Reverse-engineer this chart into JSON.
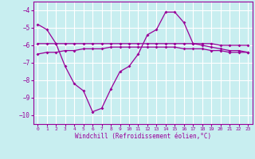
{
  "xlabel": "Windchill (Refroidissement éolien,°C)",
  "background_color": "#c8eef0",
  "line_color": "#990099",
  "grid_color": "#ffffff",
  "hours": [
    0,
    1,
    2,
    3,
    4,
    5,
    6,
    7,
    8,
    9,
    10,
    11,
    12,
    13,
    14,
    15,
    16,
    17,
    18,
    19,
    20,
    21,
    22,
    23
  ],
  "windchill": [
    -4.8,
    -5.1,
    -5.9,
    -7.2,
    -8.2,
    -8.6,
    -9.8,
    -9.6,
    -8.5,
    -7.5,
    -7.2,
    -6.5,
    -5.4,
    -5.1,
    -4.1,
    -4.1,
    -4.7,
    -5.9,
    -6.0,
    -6.1,
    -6.2,
    -6.3,
    -6.3,
    -6.4
  ],
  "temp_line": [
    -5.9,
    -5.9,
    -5.9,
    -5.9,
    -5.9,
    -5.9,
    -5.9,
    -5.9,
    -5.9,
    -5.9,
    -5.9,
    -5.9,
    -5.9,
    -5.9,
    -5.9,
    -5.9,
    -5.9,
    -5.9,
    -5.9,
    -5.9,
    -6.0,
    -6.0,
    -6.0,
    -6.0
  ],
  "avg_line": [
    -6.5,
    -6.4,
    -6.4,
    -6.3,
    -6.3,
    -6.2,
    -6.2,
    -6.2,
    -6.1,
    -6.1,
    -6.1,
    -6.1,
    -6.1,
    -6.1,
    -6.1,
    -6.1,
    -6.2,
    -6.2,
    -6.2,
    -6.3,
    -6.3,
    -6.4,
    -6.4,
    -6.4
  ],
  "ylim": [
    -10.5,
    -3.5
  ],
  "yticks": [
    -10,
    -9,
    -8,
    -7,
    -6,
    -5,
    -4
  ],
  "xlim": [
    -0.5,
    23.5
  ],
  "xticks": [
    0,
    1,
    2,
    3,
    4,
    5,
    6,
    7,
    8,
    9,
    10,
    11,
    12,
    13,
    14,
    15,
    16,
    17,
    18,
    19,
    20,
    21,
    22,
    23
  ],
  "figsize": [
    3.2,
    2.0
  ],
  "dpi": 100
}
